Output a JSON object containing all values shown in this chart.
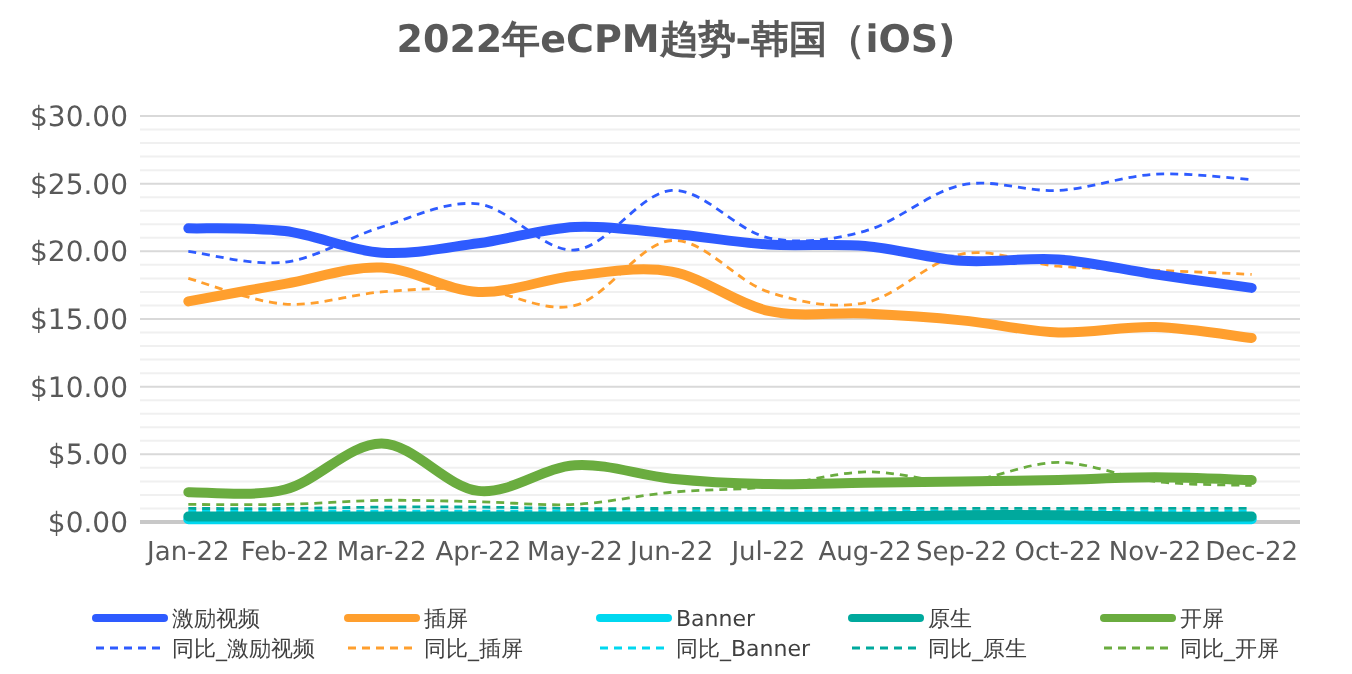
{
  "chart_data": {
    "type": "line",
    "title": "2022年eCPM趋势-韩国（iOS)",
    "categories": [
      "Jan-22",
      "Feb-22",
      "Mar-22",
      "Apr-22",
      "May-22",
      "Jun-22",
      "Jul-22",
      "Aug-22",
      "Sep-22",
      "Oct-22",
      "Nov-22",
      "Dec-22"
    ],
    "ylim": [
      0,
      30
    ],
    "yticks": [
      {
        "value": 0,
        "label": "$0.00"
      },
      {
        "value": 5,
        "label": "$5.00"
      },
      {
        "value": 10,
        "label": "$10.00"
      },
      {
        "value": 15,
        "label": "$15.00"
      },
      {
        "value": 20,
        "label": "$20.00"
      },
      {
        "value": 25,
        "label": "$25.00"
      },
      {
        "value": 30,
        "label": "$30.00"
      }
    ],
    "grid": "y",
    "legend": "bottom",
    "series": [
      {
        "name": "激励视频",
        "color": "#2e5bff",
        "line_style": "solid",
        "values": [
          21.7,
          21.5,
          19.9,
          20.6,
          21.8,
          21.3,
          20.5,
          20.4,
          19.3,
          19.4,
          18.3,
          17.3
        ]
      },
      {
        "name": "插屏",
        "color": "#ff9f2e",
        "line_style": "solid",
        "values": [
          16.3,
          17.6,
          18.8,
          17.0,
          18.2,
          18.5,
          15.6,
          15.4,
          14.9,
          14.0,
          14.4,
          13.6
        ]
      },
      {
        "name": "Banner",
        "color": "#00d8f0",
        "line_style": "solid",
        "values": [
          0.2,
          0.2,
          0.2,
          0.2,
          0.2,
          0.2,
          0.2,
          0.2,
          0.2,
          0.2,
          0.2,
          0.2
        ]
      },
      {
        "name": "原生",
        "color": "#00a99d",
        "line_style": "solid",
        "values": [
          0.4,
          0.4,
          0.4,
          0.4,
          0.4,
          0.4,
          0.4,
          0.4,
          0.5,
          0.5,
          0.4,
          0.4
        ]
      },
      {
        "name": "开屏",
        "color": "#6aac3f",
        "line_style": "solid",
        "values": [
          2.2,
          2.4,
          5.8,
          2.3,
          4.2,
          3.2,
          2.8,
          2.9,
          3.0,
          3.1,
          3.3,
          3.1
        ]
      },
      {
        "name": "同比_激励视频",
        "color": "#2e5bff",
        "line_style": "dashed",
        "values": [
          20.0,
          19.2,
          21.8,
          23.5,
          20.1,
          24.5,
          21.0,
          21.5,
          24.9,
          24.5,
          25.7,
          25.3
        ]
      },
      {
        "name": "同比_插屏",
        "color": "#ff9f2e",
        "line_style": "dashed",
        "values": [
          18.0,
          16.1,
          17.0,
          17.2,
          16.0,
          20.8,
          17.0,
          16.2,
          19.8,
          18.9,
          18.6,
          18.3
        ]
      },
      {
        "name": "同比_Banner",
        "color": "#00d8f0",
        "line_style": "dashed",
        "values": [
          0.8,
          0.8,
          0.8,
          0.8,
          0.8,
          0.8,
          0.8,
          0.8,
          0.8,
          0.8,
          0.8,
          0.8
        ]
      },
      {
        "name": "同比_原生",
        "color": "#00a99d",
        "line_style": "dashed",
        "values": [
          1.0,
          1.0,
          1.1,
          1.1,
          1.0,
          1.0,
          1.0,
          1.0,
          1.0,
          1.0,
          1.0,
          1.0
        ]
      },
      {
        "name": "同比_开屏",
        "color": "#6aac3f",
        "line_style": "dashed",
        "values": [
          1.3,
          1.3,
          1.6,
          1.5,
          1.3,
          2.2,
          2.6,
          3.7,
          3.0,
          4.4,
          3.0,
          2.7
        ]
      }
    ]
  }
}
